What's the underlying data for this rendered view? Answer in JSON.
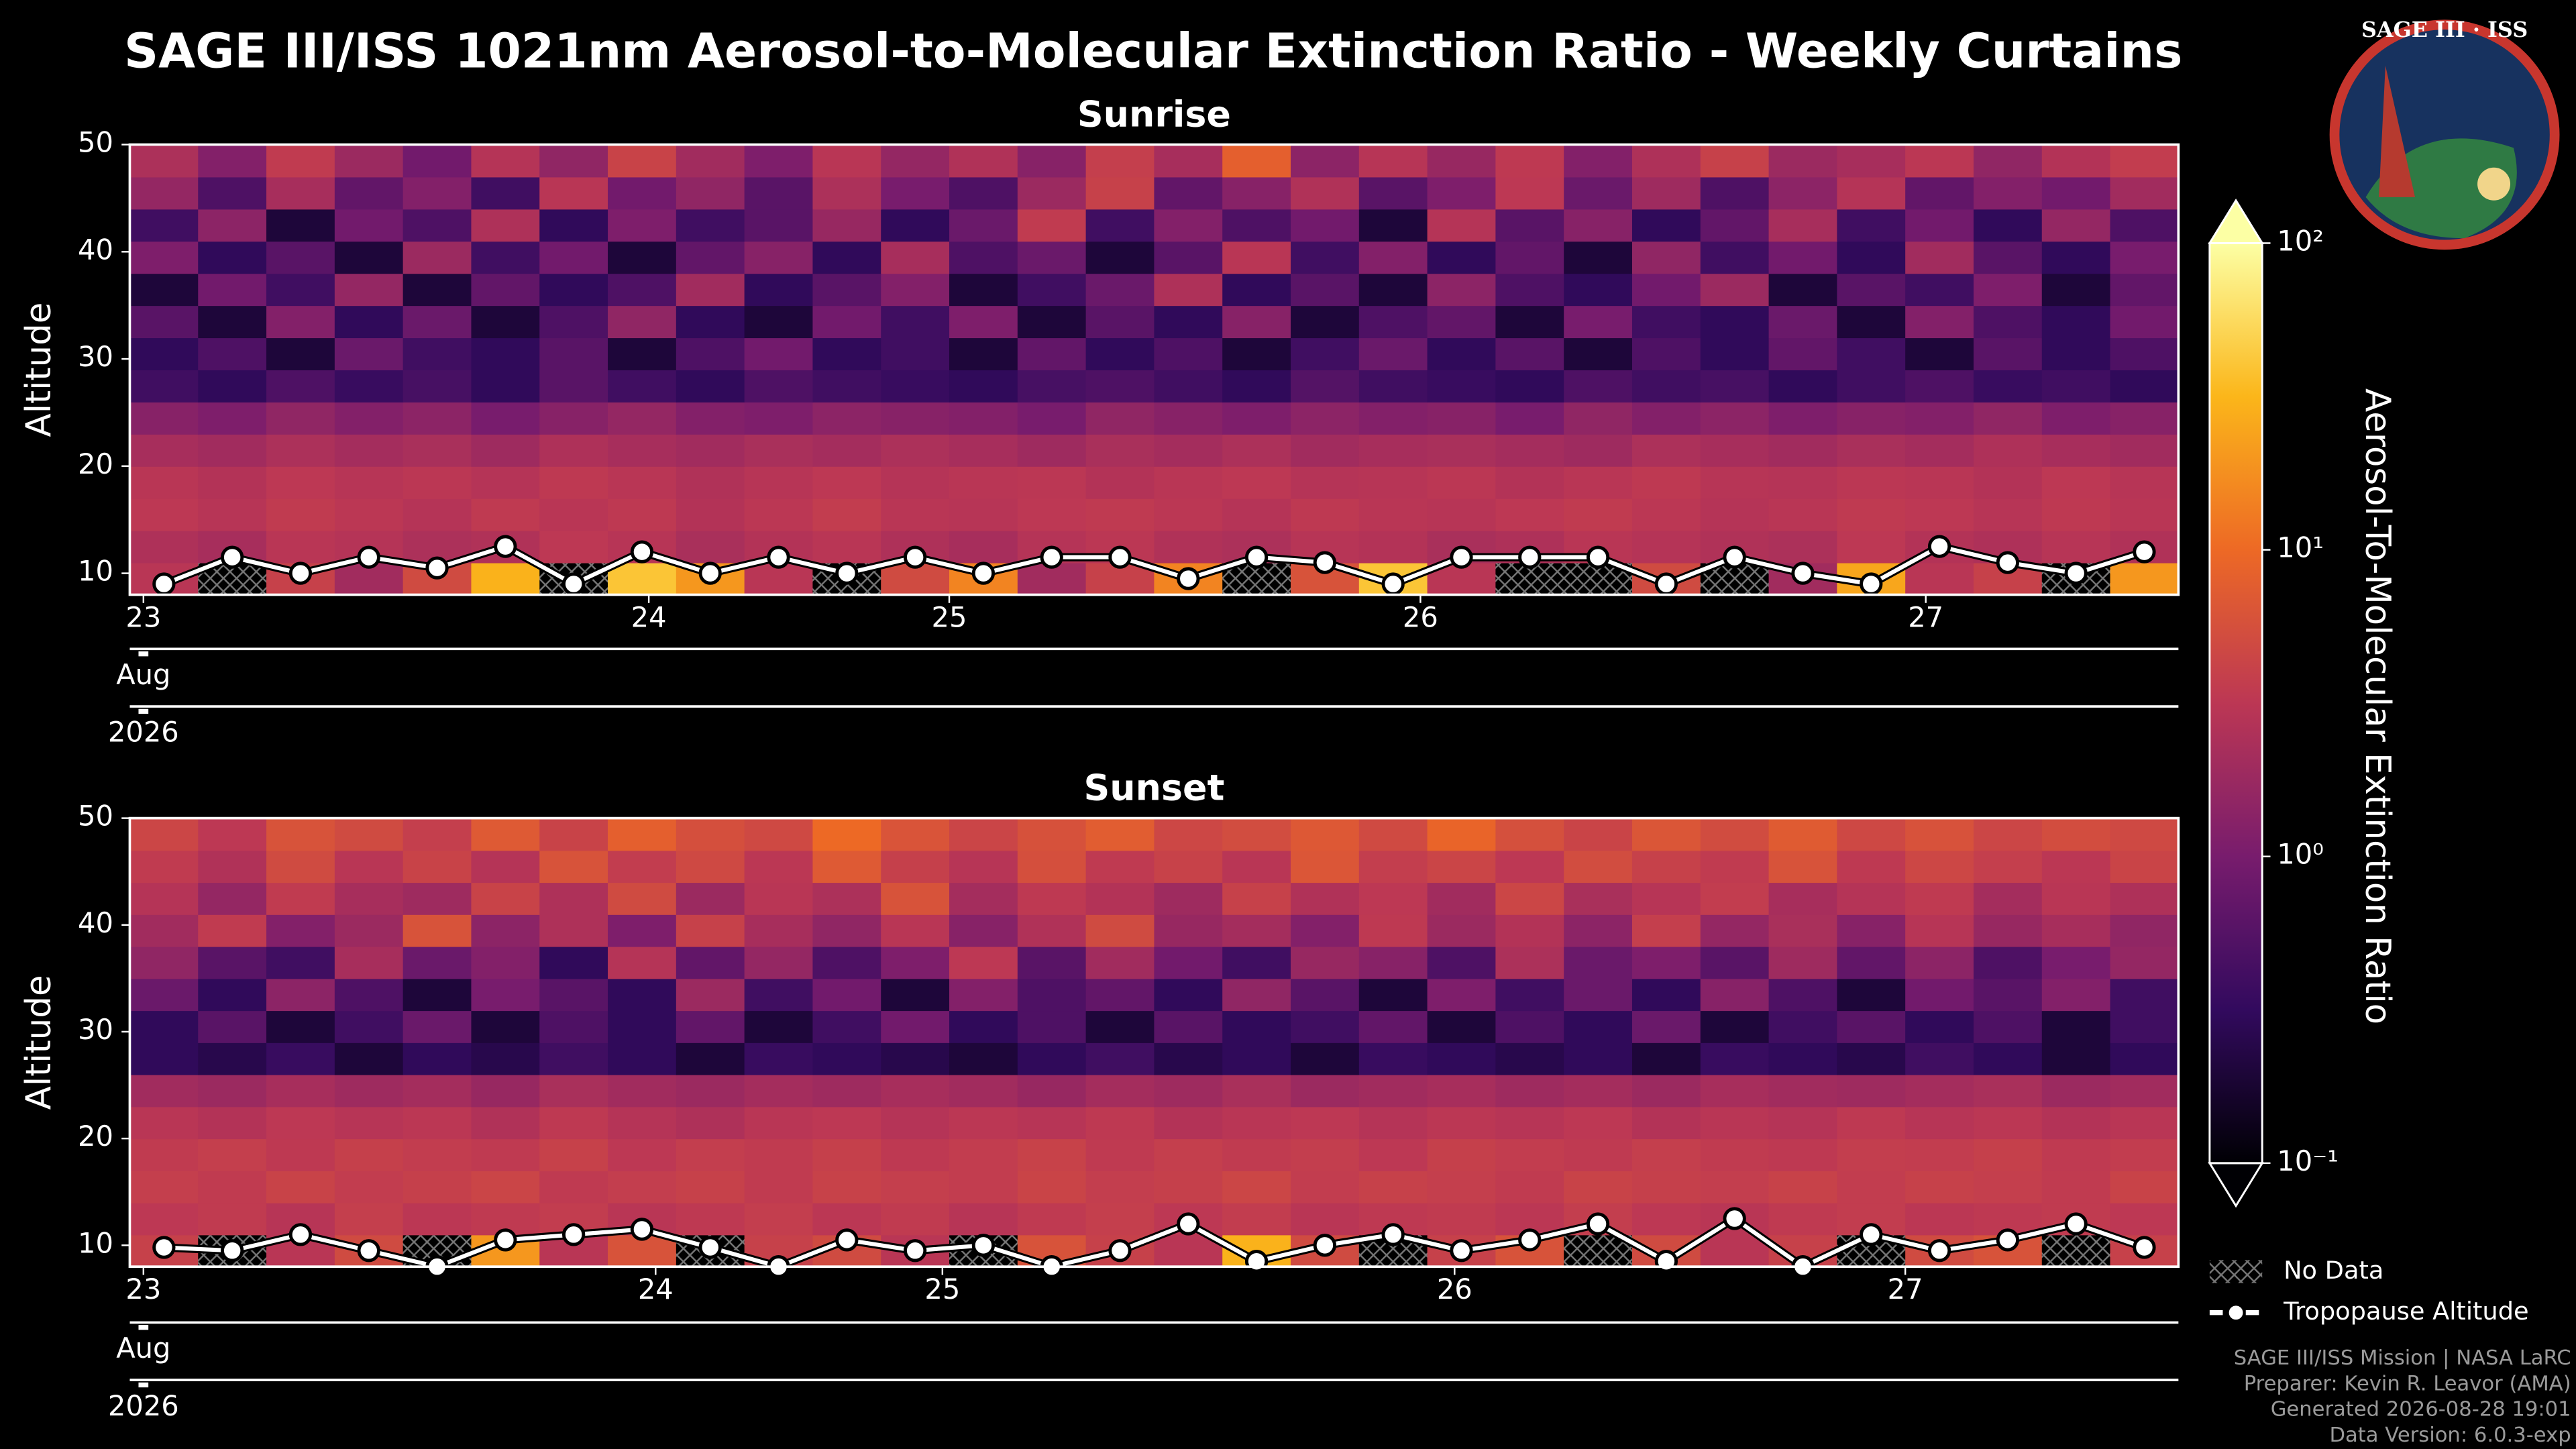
{
  "title": "SAGE III/ISS 1021nm Aerosol-to-Molecular Extinction Ratio - Weekly Curtains",
  "logo_text": "SAGE III · ISS",
  "chart_data": [
    {
      "type": "heatmap",
      "title": "Sunrise",
      "ylabel": "Altitude",
      "month_label": "Aug",
      "year_label": "2026",
      "xlim": [
        0,
        30
      ],
      "xticks": [
        {
          "value": 0.2,
          "label": "23"
        },
        {
          "value": 7.6,
          "label": "24"
        },
        {
          "value": 12,
          "label": "25"
        },
        {
          "value": 18.9,
          "label": "26"
        },
        {
          "value": 26.3,
          "label": "27"
        }
      ],
      "ylim": [
        8,
        50
      ],
      "yticks": [
        10,
        20,
        30,
        40,
        50
      ],
      "x": [
        0.5,
        1.5,
        2.5,
        3.5,
        4.5,
        5.5,
        6.5,
        7.5,
        8.5,
        9.5,
        10.5,
        11.5,
        12.5,
        13.5,
        14.5,
        15.5,
        16.5,
        17.5,
        18.5,
        19.5,
        20.5,
        21.5,
        22.5,
        23.5,
        24.5,
        25.5,
        26.5,
        27.5,
        28.5,
        29.5
      ],
      "altitude_bins": [
        8,
        11,
        14,
        17,
        20,
        23,
        26,
        29,
        32,
        35,
        38,
        41,
        44,
        47,
        50
      ],
      "z": [
        [
          3,
          null,
          4,
          2,
          5,
          30,
          null,
          40,
          20,
          3,
          null,
          5,
          15,
          2,
          4,
          15,
          null,
          6,
          40,
          3,
          null,
          null,
          5,
          null,
          2,
          25,
          3,
          4,
          null,
          20
        ],
        [
          2.5,
          2.2,
          3,
          2.8,
          2.4,
          2.6,
          3.2,
          2.9,
          2.3,
          2.7,
          3,
          2.5,
          2.2,
          2.8,
          3.1,
          2.6,
          2.4,
          2.9,
          2.7,
          2.3,
          2.5,
          3,
          2.8,
          2.6,
          2.4,
          3.2,
          2.7,
          2.5,
          2.9,
          2.6
        ],
        [
          3.2,
          2.9,
          3.5,
          3.1,
          2.8,
          3.4,
          3,
          3.3,
          2.7,
          3.1,
          3.6,
          3,
          2.9,
          3.2,
          3.4,
          3.1,
          2.8,
          3.3,
          3,
          2.9,
          3.2,
          3.5,
          3.1,
          2.8,
          3,
          3.4,
          3.2,
          2.9,
          3.3,
          3
        ],
        [
          3,
          2.7,
          3.2,
          2.9,
          3.1,
          2.8,
          3.3,
          3,
          2.6,
          2.9,
          3.2,
          2.8,
          3,
          3.1,
          2.7,
          3,
          3.2,
          2.8,
          2.9,
          3.1,
          2.7,
          3,
          3.3,
          2.9,
          2.8,
          3.1,
          3,
          2.7,
          3.2,
          2.9
        ],
        [
          2.2,
          2,
          2.4,
          2.1,
          2.3,
          1.9,
          2.5,
          2.2,
          2,
          2.3,
          2.1,
          2.4,
          2.2,
          1.9,
          2.3,
          2.1,
          2.4,
          2,
          2.2,
          2.3,
          2.1,
          1.9,
          2.4,
          2.2,
          2,
          2.3,
          2.1,
          2.5,
          2.2,
          2
        ],
        [
          1.3,
          1.1,
          1.5,
          1.2,
          1.4,
          1,
          1.3,
          1.6,
          1.2,
          1.1,
          1.4,
          1.3,
          1.2,
          1,
          1.5,
          1.3,
          1.1,
          1.4,
          1.2,
          1.3,
          1,
          1.5,
          1.2,
          1.4,
          1.1,
          1.3,
          1.2,
          1.5,
          1.1,
          1.3
        ],
        [
          0.4,
          0.3,
          0.5,
          0.35,
          0.45,
          0.3,
          0.6,
          0.4,
          0.3,
          0.5,
          0.4,
          0.35,
          0.3,
          0.45,
          0.5,
          0.4,
          0.3,
          0.55,
          0.4,
          0.35,
          0.3,
          0.5,
          0.4,
          0.45,
          0.3,
          0.4,
          0.5,
          0.35,
          0.4,
          0.3
        ],
        [
          0.3,
          0.5,
          0.2,
          0.8,
          0.4,
          0.3,
          0.6,
          0.2,
          0.5,
          0.9,
          0.3,
          0.4,
          0.2,
          0.7,
          0.3,
          0.5,
          0.2,
          0.4,
          0.8,
          0.3,
          0.6,
          0.2,
          0.5,
          0.3,
          0.7,
          0.4,
          0.2,
          0.6,
          0.3,
          0.5
        ],
        [
          0.6,
          0.2,
          1.2,
          0.3,
          0.8,
          0.2,
          0.5,
          1.5,
          0.3,
          0.2,
          0.9,
          0.4,
          1.1,
          0.2,
          0.6,
          0.3,
          1.3,
          0.2,
          0.5,
          0.7,
          0.2,
          1,
          0.4,
          0.3,
          0.8,
          0.2,
          1.2,
          0.5,
          0.3,
          0.9
        ],
        [
          0.2,
          0.9,
          0.4,
          1.6,
          0.2,
          0.7,
          0.3,
          0.5,
          2,
          0.3,
          0.6,
          1.2,
          0.2,
          0.4,
          0.8,
          2.5,
          0.3,
          0.6,
          0.2,
          1.4,
          0.5,
          0.3,
          0.9,
          1.8,
          0.2,
          0.6,
          0.4,
          1.1,
          0.2,
          0.7
        ],
        [
          1.1,
          0.3,
          0.6,
          0.2,
          1.8,
          0.4,
          0.9,
          0.2,
          0.7,
          1.3,
          0.3,
          2.2,
          0.5,
          0.8,
          0.2,
          0.6,
          3,
          0.4,
          1.2,
          0.3,
          0.7,
          0.2,
          1.5,
          0.4,
          0.9,
          0.3,
          2,
          0.6,
          0.3,
          1
        ],
        [
          0.4,
          1.4,
          0.2,
          0.9,
          0.5,
          2.5,
          0.3,
          1.1,
          0.4,
          0.6,
          1.7,
          0.3,
          0.8,
          3.5,
          0.4,
          1.2,
          0.5,
          0.9,
          0.2,
          2.8,
          0.6,
          1.3,
          0.3,
          0.7,
          2.2,
          0.4,
          0.9,
          0.3,
          1.6,
          0.5
        ],
        [
          1.6,
          0.5,
          2.2,
          0.7,
          1.2,
          0.4,
          3,
          0.9,
          1.5,
          0.6,
          2.4,
          1,
          0.5,
          1.8,
          4,
          0.7,
          1.3,
          2.6,
          0.6,
          1.1,
          3.2,
          0.8,
          1.9,
          0.5,
          1.4,
          2.8,
          0.7,
          1.2,
          0.9,
          2
        ],
        [
          2.4,
          1.2,
          3.5,
          1.8,
          0.9,
          2.8,
          1.5,
          4.2,
          2,
          1.1,
          3,
          1.6,
          2.6,
          1.3,
          3.8,
          2.2,
          8,
          1.4,
          2.9,
          1.7,
          3.3,
          1.2,
          2.5,
          4,
          1.8,
          2.2,
          3.1,
          1.5,
          2.7,
          3.6
        ]
      ],
      "tropopause": [
        9,
        11.5,
        10,
        11.5,
        10.5,
        12.5,
        9,
        12,
        10,
        11.5,
        10,
        11.5,
        10,
        11.5,
        11.5,
        9.5,
        11.5,
        11,
        9,
        11.5,
        11.5,
        11.5,
        9,
        11.5,
        10,
        9,
        12.5,
        11,
        10,
        12
      ]
    },
    {
      "type": "heatmap",
      "title": "Sunset",
      "ylabel": "Altitude",
      "month_label": "Aug",
      "year_label": "2026",
      "xlim": [
        0,
        30
      ],
      "xticks": [
        {
          "value": 0.2,
          "label": "23"
        },
        {
          "value": 7.7,
          "label": "24"
        },
        {
          "value": 11.9,
          "label": "25"
        },
        {
          "value": 19.4,
          "label": "26"
        },
        {
          "value": 26,
          "label": "27"
        }
      ],
      "ylim": [
        8,
        50
      ],
      "yticks": [
        10,
        20,
        30,
        40,
        50
      ],
      "x": [
        0.5,
        1.5,
        2.5,
        3.5,
        4.5,
        5.5,
        6.5,
        7.5,
        8.5,
        9.5,
        10.5,
        11.5,
        12.5,
        13.5,
        14.5,
        15.5,
        16.5,
        17.5,
        18.5,
        19.5,
        20.5,
        21.5,
        22.5,
        23.5,
        24.5,
        25.5,
        26.5,
        27.5,
        28.5,
        29.5
      ],
      "altitude_bins": [
        8,
        11,
        14,
        17,
        20,
        23,
        26,
        29,
        32,
        35,
        38,
        41,
        44,
        47,
        50
      ],
      "z": [
        [
          4,
          null,
          3,
          5,
          null,
          20,
          3,
          6,
          null,
          4,
          5,
          3,
          null,
          6,
          4,
          3,
          30,
          5,
          null,
          4,
          6,
          null,
          5,
          3,
          4,
          null,
          5,
          6,
          null,
          4
        ],
        [
          3.2,
          3.5,
          2.9,
          3.8,
          3.1,
          3.4,
          3.6,
          3,
          3.3,
          3.7,
          3.1,
          3.5,
          2.9,
          3.4,
          3.8,
          3.2,
          3.6,
          3,
          3.3,
          3.5,
          3.1,
          3.7,
          3.2,
          3,
          3.4,
          3.6,
          3.1,
          3.3,
          3.5,
          3.2
        ],
        [
          3.8,
          3.5,
          4.2,
          3.6,
          3.9,
          4.4,
          3.4,
          3.7,
          4,
          3.5,
          4.1,
          3.8,
          3.6,
          4.3,
          3.7,
          3.9,
          4.5,
          3.6,
          4,
          3.8,
          3.5,
          4.2,
          3.9,
          3.7,
          4.1,
          3.6,
          4,
          3.8,
          3.5,
          4.2
        ],
        [
          3.5,
          3.8,
          3.3,
          3.9,
          3.6,
          3.4,
          4,
          3.2,
          3.7,
          3.5,
          3.9,
          3.3,
          3.6,
          4.1,
          3.4,
          3.8,
          3.5,
          3.7,
          3.2,
          3.9,
          3.6,
          3.4,
          3.8,
          3.5,
          3.3,
          3.7,
          3.6,
          3.9,
          3.4,
          3.6
        ],
        [
          3,
          2.7,
          3.2,
          2.9,
          3.1,
          2.6,
          3.3,
          2.8,
          2.5,
          3,
          3.2,
          2.8,
          3.1,
          2.9,
          3.3,
          2.7,
          3,
          3.2,
          2.8,
          3.1,
          2.9,
          3.2,
          2.7,
          3,
          2.8,
          3.3,
          2.9,
          3.1,
          2.7,
          3
        ],
        [
          2,
          1.8,
          2.2,
          1.9,
          2.1,
          1.7,
          2.3,
          2,
          1.8,
          2.1,
          1.9,
          2.2,
          2,
          1.7,
          2.1,
          1.9,
          2.3,
          1.8,
          2,
          2.2,
          1.9,
          2.1,
          1.8,
          2.2,
          2,
          1.9,
          2.1,
          2.3,
          1.8,
          2
        ],
        [
          0.3,
          0.25,
          0.35,
          0.2,
          0.3,
          0.25,
          0.4,
          0.3,
          0.2,
          0.35,
          0.3,
          0.25,
          0.2,
          0.3,
          0.4,
          0.25,
          0.3,
          0.2,
          0.35,
          0.3,
          0.25,
          0.3,
          0.2,
          0.35,
          0.3,
          0.25,
          0.4,
          0.3,
          0.2,
          0.3
        ],
        [
          0.3,
          0.6,
          0.2,
          0.4,
          0.8,
          0.2,
          0.5,
          0.3,
          0.7,
          0.2,
          0.4,
          0.9,
          0.3,
          0.5,
          0.2,
          0.6,
          0.3,
          0.4,
          0.7,
          0.2,
          0.5,
          0.3,
          0.8,
          0.2,
          0.4,
          0.6,
          0.3,
          0.5,
          0.2,
          0.4
        ],
        [
          0.8,
          0.3,
          1.4,
          0.5,
          0.2,
          1,
          0.6,
          0.3,
          1.8,
          0.4,
          0.9,
          0.2,
          1.2,
          0.5,
          0.7,
          0.3,
          1.5,
          0.6,
          0.2,
          1.1,
          0.4,
          0.8,
          0.3,
          1.3,
          0.5,
          0.2,
          0.9,
          0.6,
          1.2,
          0.4
        ],
        [
          1.5,
          0.6,
          0.4,
          2.2,
          0.8,
          1.2,
          0.3,
          2.8,
          0.7,
          1.6,
          0.5,
          1.1,
          3.2,
          0.6,
          2,
          0.9,
          0.4,
          1.7,
          1.3,
          0.5,
          2.4,
          0.8,
          1.1,
          0.6,
          1.9,
          0.7,
          1.4,
          0.5,
          1,
          1.6
        ],
        [
          2,
          3.5,
          1.2,
          1.8,
          6,
          1.4,
          2.5,
          1.1,
          4,
          2.2,
          1.5,
          3,
          1.3,
          2.6,
          5,
          1.7,
          2.1,
          1.2,
          3.3,
          1.8,
          2.7,
          1.4,
          3.8,
          1.6,
          2.3,
          1.3,
          2.9,
          1.7,
          2.2,
          1.5
        ],
        [
          2.8,
          1.6,
          3.5,
          2.2,
          1.9,
          4.2,
          2.5,
          5,
          1.8,
          3,
          2.4,
          6,
          2.1,
          3.3,
          2.7,
          1.9,
          4,
          2.6,
          3.2,
          2,
          4.5,
          2.3,
          2.9,
          3.6,
          2.2,
          2.8,
          3.4,
          2.1,
          3,
          2.5
        ],
        [
          3.5,
          2.6,
          5,
          3,
          4.2,
          2.8,
          6,
          3.6,
          4.8,
          3.1,
          7,
          3.9,
          2.9,
          5.5,
          3.4,
          4.1,
          3,
          6.5,
          3.7,
          4.4,
          3.2,
          5.2,
          4,
          3.5,
          6,
          3.3,
          4.6,
          3.8,
          3.1,
          4.3
        ],
        [
          4.5,
          3.2,
          6,
          5,
          3.8,
          7,
          4.2,
          8,
          5.5,
          4.8,
          10,
          6.2,
          4.4,
          5.8,
          7.5,
          4.6,
          5.2,
          6.8,
          4.9,
          9,
          5.6,
          4.3,
          6.4,
          5.1,
          7.2,
          4.7,
          5.9,
          4.5,
          5.3,
          4.8
        ]
      ],
      "tropopause": [
        9.8,
        9.5,
        11,
        9.5,
        8,
        10.5,
        11,
        11.5,
        9.8,
        8,
        10.5,
        9.5,
        10,
        8,
        9.5,
        12,
        8.5,
        10,
        11,
        9.5,
        10.5,
        12,
        8.5,
        12.5,
        8,
        11,
        9.5,
        10.5,
        12,
        9.8
      ]
    }
  ],
  "colorbar": {
    "label": "Aerosol-To-Molecular Extinction Ratio",
    "log": true,
    "lim": [
      0.1,
      100
    ],
    "ticks": [
      {
        "value": 0.1,
        "label": "10⁻¹"
      },
      {
        "value": 1,
        "label": "10⁰"
      },
      {
        "value": 10,
        "label": "10¹"
      },
      {
        "value": 100,
        "label": "10²"
      }
    ],
    "colormap": [
      "#000004",
      "#320a5e",
      "#781c6d",
      "#bc3754",
      "#ed6925",
      "#fbb61a",
      "#fcffa4"
    ]
  },
  "legend": {
    "no_data": "No Data",
    "tropopause": "Tropopause Altitude"
  },
  "footer": [
    "SAGE III/ISS Mission | NASA LaRC",
    "Preparer: Kevin R. Leavor (AMA)",
    "Generated 2026-08-28 19:01",
    "Data Version: 6.0.3-exp"
  ]
}
